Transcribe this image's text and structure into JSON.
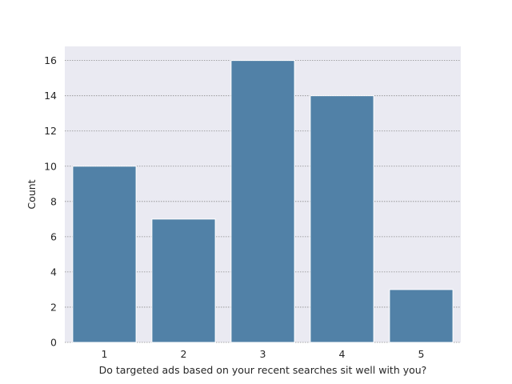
{
  "chart_data": {
    "type": "bar",
    "categories": [
      "1",
      "2",
      "3",
      "4",
      "5"
    ],
    "values": [
      10,
      7,
      16,
      14,
      3
    ],
    "title": "",
    "xlabel": "Do targeted ads based on your recent searches sit well with you?",
    "ylabel": "Count",
    "ylim": [
      0,
      16.8
    ],
    "yticks": [
      0,
      2,
      4,
      6,
      8,
      10,
      12,
      14,
      16
    ],
    "grid": true,
    "grid_axis": "y",
    "legend": "none",
    "colors": {
      "bar": "#5181a7",
      "plot_background": "#eaeaf2",
      "grid": "#8c8c8c"
    }
  }
}
